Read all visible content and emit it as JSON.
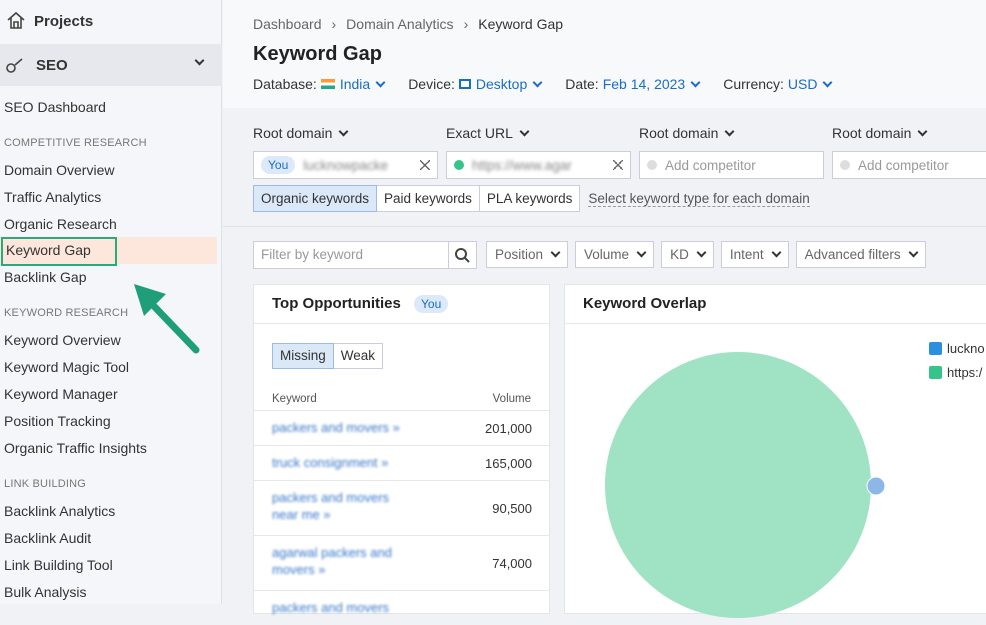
{
  "sidebar": {
    "projects": "Projects",
    "seo": "SEO",
    "groups": [
      {
        "items": [
          "SEO Dashboard"
        ]
      },
      {
        "heading": "COMPETITIVE RESEARCH",
        "items": [
          "Domain Overview",
          "Traffic Analytics",
          "Organic Research",
          "Keyword Gap",
          "Backlink Gap"
        ]
      },
      {
        "heading": "KEYWORD RESEARCH",
        "items": [
          "Keyword Overview",
          "Keyword Magic Tool",
          "Keyword Manager",
          "Position Tracking",
          "Organic Traffic Insights"
        ]
      },
      {
        "heading": "LINK BUILDING",
        "items": [
          "Backlink Analytics",
          "Backlink Audit",
          "Link Building Tool",
          "Bulk Analysis"
        ]
      }
    ]
  },
  "breadcrumb": [
    "Dashboard",
    "Domain Analytics",
    "Keyword Gap"
  ],
  "title": "Keyword Gap",
  "settings": [
    {
      "label": "Database:",
      "value": "India"
    },
    {
      "label": "Device:",
      "value": "Desktop"
    },
    {
      "label": "Date:",
      "value": "Feb 14, 2023"
    },
    {
      "label": "Currency:",
      "value": "USD"
    }
  ],
  "domains": [
    {
      "type": "Root domain",
      "badge": "You",
      "value": "lucknowpacke"
    },
    {
      "type": "Exact URL",
      "value": "https://www.agar"
    },
    {
      "type": "Root domain",
      "value": "Add competitor"
    },
    {
      "type": "Root domain",
      "value": "Add competitor"
    }
  ],
  "keyword_types": [
    "Organic keywords",
    "Paid keywords",
    "PLA keywords"
  ],
  "keyword_type_hint": "Select keyword type for each domain",
  "filter_placeholder": "Filter by keyword",
  "dropdowns": [
    "Position",
    "Volume",
    "KD",
    "Intent",
    "Advanced filters"
  ],
  "opportunities": {
    "title": "Top Opportunities",
    "badge": "You",
    "tabs": [
      "Missing",
      "Weak"
    ],
    "columns": [
      "Keyword",
      "Volume"
    ],
    "rows": [
      {
        "keyword": "packers and movers »",
        "volume": "201,000"
      },
      {
        "keyword": "truck consignment »",
        "volume": "165,000"
      },
      {
        "keyword": "packers and movers near me »",
        "volume": "90,500"
      },
      {
        "keyword": "agarwal packers and movers »",
        "volume": "74,000"
      },
      {
        "keyword": "packers and movers",
        "volume": ""
      }
    ]
  },
  "overlap": {
    "title": "Keyword Overlap",
    "legend": [
      "luckno",
      "https:/"
    ]
  }
}
